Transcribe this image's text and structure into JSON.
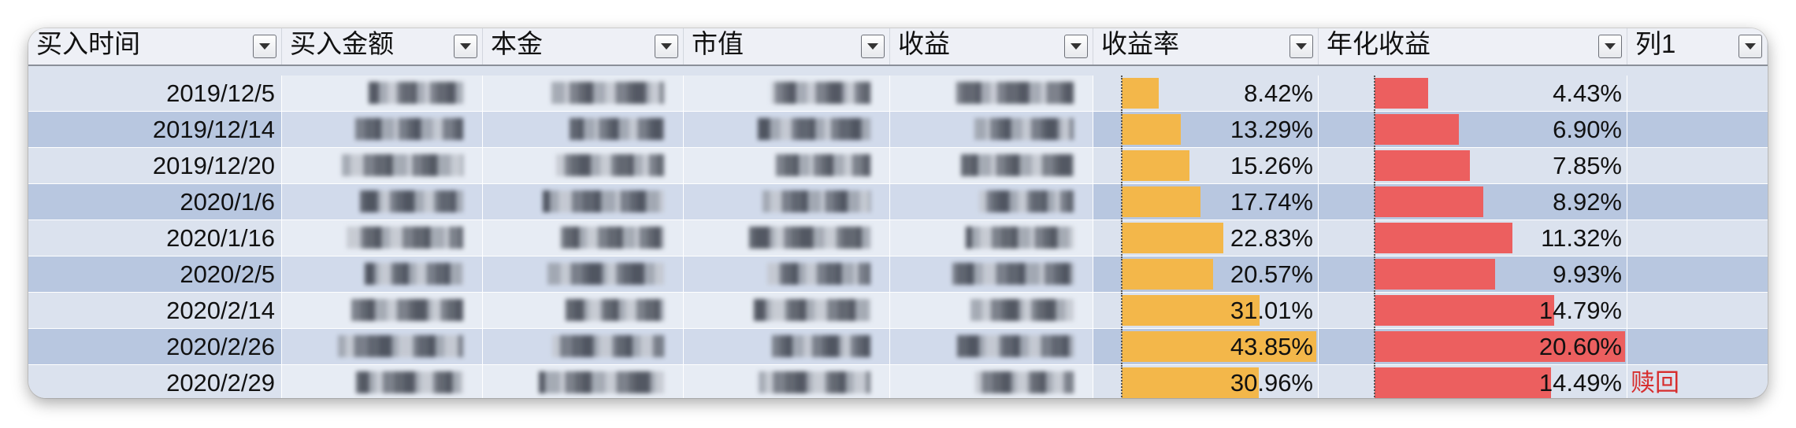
{
  "table": {
    "columns": [
      {
        "key": "buy_date",
        "label": "买入时间"
      },
      {
        "key": "buy_amount",
        "label": "买入金额"
      },
      {
        "key": "principal",
        "label": "本金"
      },
      {
        "key": "market_value",
        "label": "市值"
      },
      {
        "key": "profit",
        "label": "收益"
      },
      {
        "key": "yield",
        "label": "收益率"
      },
      {
        "key": "annual_yield",
        "label": "年化收益"
      },
      {
        "key": "col1",
        "label": "列1"
      }
    ],
    "rows": [
      {
        "buy_date": "2019/12/5",
        "yield": "8.42%",
        "yield_value": 8.42,
        "annual_yield": "4.43%",
        "annual_value": 4.43,
        "col1": ""
      },
      {
        "buy_date": "2019/12/14",
        "yield": "13.29%",
        "yield_value": 13.29,
        "annual_yield": "6.90%",
        "annual_value": 6.9,
        "col1": ""
      },
      {
        "buy_date": "2019/12/20",
        "yield": "15.26%",
        "yield_value": 15.26,
        "annual_yield": "7.85%",
        "annual_value": 7.85,
        "col1": ""
      },
      {
        "buy_date": "2020/1/6",
        "yield": "17.74%",
        "yield_value": 17.74,
        "annual_yield": "8.92%",
        "annual_value": 8.92,
        "col1": ""
      },
      {
        "buy_date": "2020/1/16",
        "yield": "22.83%",
        "yield_value": 22.83,
        "annual_yield": "11.32%",
        "annual_value": 11.32,
        "col1": ""
      },
      {
        "buy_date": "2020/2/5",
        "yield": "20.57%",
        "yield_value": 20.57,
        "annual_yield": "9.93%",
        "annual_value": 9.93,
        "col1": ""
      },
      {
        "buy_date": "2020/2/14",
        "yield": "31.01%",
        "yield_value": 31.01,
        "annual_yield": "14.79%",
        "annual_value": 14.79,
        "col1": ""
      },
      {
        "buy_date": "2020/2/26",
        "yield": "43.85%",
        "yield_value": 43.85,
        "annual_yield": "20.60%",
        "annual_value": 20.6,
        "col1": ""
      },
      {
        "buy_date": "2020/2/29",
        "yield": "30.96%",
        "yield_value": 30.96,
        "annual_yield": "14.49%",
        "annual_value": 14.49,
        "col1": "赎回"
      }
    ],
    "yield_bar_max": 43.85,
    "annual_bar_max": 20.6
  },
  "colors": {
    "row_light": "#dbe2ee",
    "row_dark": "#b8c7e0",
    "yield_bar": "#f3b74a",
    "annual_bar": "#ec5f5f",
    "remark_text": "#d72d2d"
  }
}
